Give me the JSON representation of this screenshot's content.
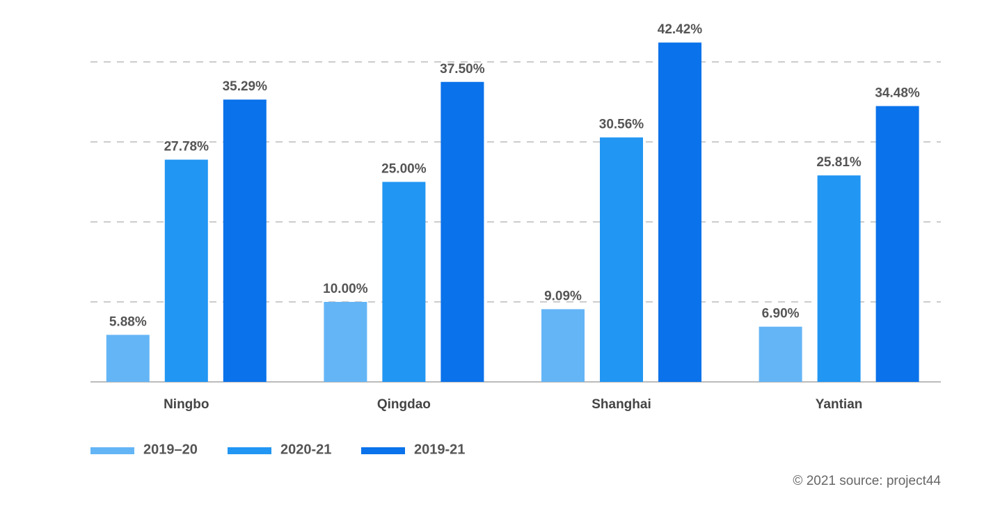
{
  "chart_data": {
    "type": "bar",
    "categories": [
      "Ningbo",
      "Qingdao",
      "Shanghai",
      "Yantian"
    ],
    "series": [
      {
        "name": "2019–20",
        "color": "#64b5f6",
        "values": [
          5.88,
          10.0,
          9.09,
          6.9
        ],
        "value_labels": [
          "5.88%",
          "10.00%",
          "9.09%",
          "6.90%"
        ]
      },
      {
        "name": "2020-21",
        "color": "#2196f3",
        "values": [
          27.78,
          25.0,
          30.56,
          25.81
        ],
        "value_labels": [
          "27.78%",
          "25.00%",
          "30.56%",
          "25.81%"
        ]
      },
      {
        "name": "2019-21",
        "color": "#0a72ea",
        "values": [
          35.29,
          37.5,
          42.42,
          34.48
        ],
        "value_labels": [
          "35.29%",
          "37.50%",
          "42.42%",
          "34.48%"
        ]
      }
    ],
    "ylim": [
      0,
      45
    ],
    "yticks": [
      10,
      20,
      30,
      40
    ],
    "grid": true,
    "source": "© 2021 source: project44"
  }
}
